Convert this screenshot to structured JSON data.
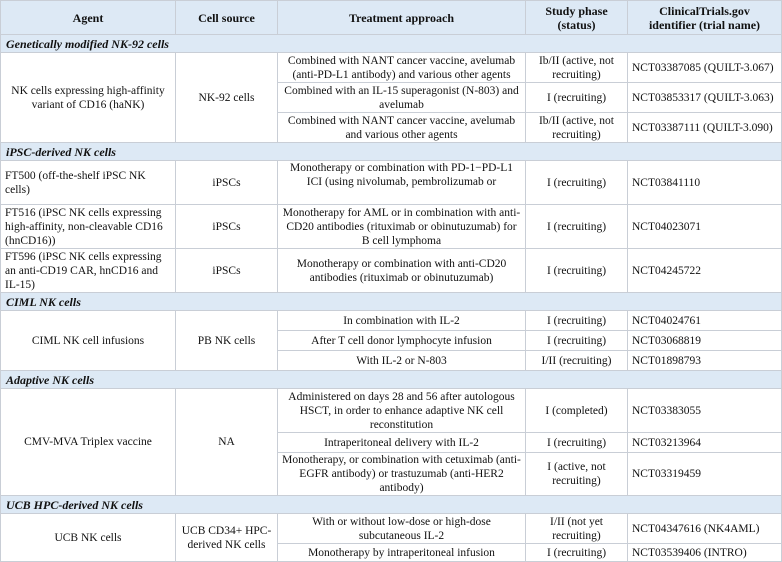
{
  "headers": {
    "agent": "Agent",
    "cell_source": "Cell source",
    "treatment": "Treatment approach",
    "phase_line1": "Study phase",
    "phase_line2": "(status)",
    "id_line1": "ClinicalTrials.gov",
    "id_line2": "identifier (trial name)"
  },
  "sections": [
    {
      "title": "Genetically modified NK-92 cells",
      "agent": "NK cells expressing high-affinity variant of CD16 (haNK)",
      "source": "NK-92 cells",
      "trials": [
        {
          "treatment": "Combined with NANT cancer vaccine, avelumab (anti-PD-L1 antibody) and various other agents",
          "phase": "Ib/II (active, not recruiting)",
          "id": "NCT03387085 (QUILT-3.067)"
        },
        {
          "treatment": "Combined with an IL-15 superagonist (N-803) and avelumab",
          "phase": "I (recruiting)",
          "id": "NCT03853317 (QUILT-3.063)"
        },
        {
          "treatment": "Combined with NANT cancer vaccine, avelumab and various other agents",
          "phase": "Ib/II (active, not recruiting)",
          "id": "NCT03387111 (QUILT-3.090)"
        }
      ]
    },
    {
      "title": "iPSC-derived NK cells",
      "rows": [
        {
          "agent": "FT500 (off-the-shelf iPSC NK cells)",
          "source": "iPSCs",
          "treatment": "Monotherapy or combination with PD-1−PD-L1 ICI (using nivolumab, pembrolizumab or",
          "phase": "I (recruiting)",
          "id": "NCT03841110"
        },
        {
          "agent": "FT516 (iPSC NK cells expressing high-affinity, non-cleavable CD16 (hnCD16))",
          "source": "iPSCs",
          "treatment": "Monotherapy for AML or in combination with anti-CD20 antibodies (rituximab or obinutuzumab) for B cell lymphoma",
          "phase": "I (recruiting)",
          "id": "NCT04023071"
        },
        {
          "agent": "FT596 (iPSC NK cells expressing an anti-CD19 CAR, hnCD16 and IL-15)",
          "source": "iPSCs",
          "treatment": "Monotherapy or combination with anti-CD20 antibodies (rituximab or obinutuzumab)",
          "phase": "I (recruiting)",
          "id": "NCT04245722"
        }
      ]
    },
    {
      "title": "CIML NK cells",
      "agent": "CIML NK cell infusions",
      "source": "PB NK cells",
      "trials": [
        {
          "treatment": "In combination with IL-2",
          "phase": "I (recruiting)",
          "id": "NCT04024761"
        },
        {
          "treatment": "After T cell donor lymphocyte infusion",
          "phase": "I (recruiting)",
          "id": "NCT03068819"
        },
        {
          "treatment": "With IL-2 or N-803",
          "phase": "I/II (recruiting)",
          "id": "NCT01898793"
        }
      ]
    },
    {
      "title": "Adaptive NK cells",
      "agent": "CMV-MVA Triplex vaccine",
      "source": "NA",
      "trials": [
        {
          "treatment": "Administered on days 28 and 56 after autologous HSCT, in order to enhance adaptive NK cell reconstitution",
          "phase": "I (completed)",
          "id": "NCT03383055"
        },
        {
          "treatment": "Intraperitoneal delivery with IL-2",
          "phase": "I (recruiting)",
          "id": "NCT03213964"
        },
        {
          "treatment": "Monotherapy, or combination with cetuximab (anti-EGFR antibody) or trastuzumab (anti-HER2 antibody)",
          "phase": "I (active, not recruiting)",
          "id": "NCT03319459"
        }
      ]
    },
    {
      "title": "UCB HPC-derived NK cells",
      "agent": "UCB NK cells",
      "source": "UCB CD34+ HPC-derived NK cells",
      "trials": [
        {
          "treatment": "With or without low-dose or high-dose subcutaneous IL-2",
          "phase": "I/II (not yet recruiting)",
          "id": "NCT04347616 (NK4AML)"
        },
        {
          "treatment": "Monotherapy by intraperitoneal infusion",
          "phase": "I (recruiting)",
          "id": "NCT03539406 (INTRO)"
        }
      ]
    }
  ]
}
